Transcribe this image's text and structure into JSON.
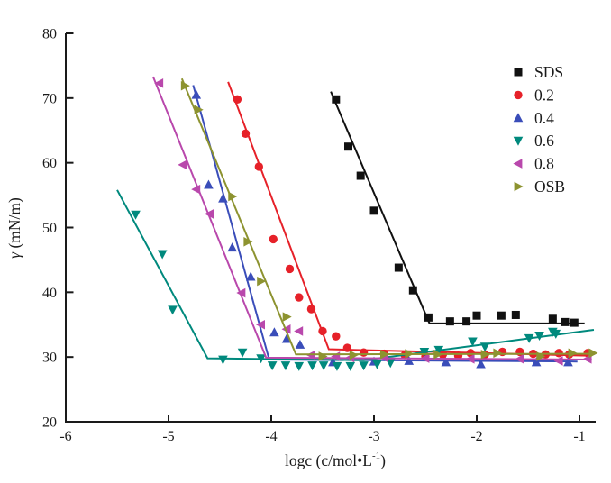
{
  "figure": {
    "background": "#ffffff",
    "axis_color": "#1a1a1a",
    "text_color": "#1a1a1a"
  },
  "chart_data": {
    "type": "scatter",
    "title": "",
    "xlabel_parts": {
      "main": "logc (c/mol•L",
      "sup": "-1",
      "close": ")"
    },
    "ylabel_parts": {
      "symbol": "γ",
      "rest": " (mN/m)"
    },
    "xlim": [
      -6,
      -0.75
    ],
    "ylim": [
      20,
      80
    ],
    "x_ticks": [
      -6,
      -5,
      -4,
      -3,
      -2,
      -1
    ],
    "y_ticks": [
      20,
      30,
      40,
      50,
      60,
      70,
      80
    ],
    "grid": false,
    "legend_position": "top-right",
    "series": [
      {
        "name": "SDS",
        "color": "#111111",
        "marker": "square",
        "line": [
          [
            -3.42,
            71.0
          ],
          [
            -2.46,
            35.2
          ],
          [
            -0.95,
            35.2
          ]
        ],
        "scatter": [
          [
            -3.37,
            69.8
          ],
          [
            -3.25,
            62.5
          ],
          [
            -3.13,
            58.0
          ],
          [
            -3.0,
            52.6
          ],
          [
            -2.76,
            43.8
          ],
          [
            -2.62,
            40.3
          ],
          [
            -2.47,
            36.1
          ],
          [
            -2.26,
            35.5
          ],
          [
            -2.1,
            35.5
          ],
          [
            -2.0,
            36.4
          ],
          [
            -1.76,
            36.4
          ],
          [
            -1.62,
            36.5
          ],
          [
            -1.26,
            35.9
          ],
          [
            -1.14,
            35.4
          ],
          [
            -1.05,
            35.3
          ]
        ]
      },
      {
        "name": "0.2",
        "color": "#e62129",
        "marker": "circle",
        "line": [
          [
            -4.42,
            72.5
          ],
          [
            -3.44,
            31.2
          ],
          [
            -0.88,
            30.2
          ]
        ],
        "scatter": [
          [
            -4.33,
            69.8
          ],
          [
            -4.25,
            64.5
          ],
          [
            -4.12,
            59.4
          ],
          [
            -3.98,
            48.2
          ],
          [
            -3.82,
            43.6
          ],
          [
            -3.73,
            39.2
          ],
          [
            -3.61,
            37.4
          ],
          [
            -3.5,
            34.0
          ],
          [
            -3.37,
            33.2
          ],
          [
            -3.26,
            31.4
          ],
          [
            -3.1,
            30.7
          ],
          [
            -2.9,
            30.5
          ],
          [
            -2.7,
            30.3
          ],
          [
            -2.5,
            30.1
          ],
          [
            -2.33,
            30.4
          ],
          [
            -2.18,
            30.2
          ],
          [
            -2.06,
            30.6
          ],
          [
            -1.92,
            30.4
          ],
          [
            -1.75,
            30.8
          ],
          [
            -1.58,
            30.8
          ],
          [
            -1.45,
            30.5
          ],
          [
            -1.33,
            30.4
          ],
          [
            -1.2,
            30.6
          ],
          [
            -1.1,
            30.4
          ],
          [
            -0.92,
            30.6
          ]
        ]
      },
      {
        "name": "0.4",
        "color": "#3a4db9",
        "marker": "triangle-up",
        "line": [
          [
            -4.76,
            72.0
          ],
          [
            -4.02,
            29.6
          ],
          [
            -1.02,
            29.3
          ]
        ],
        "scatter": [
          [
            -4.73,
            70.5
          ],
          [
            -4.61,
            56.6
          ],
          [
            -4.47,
            54.5
          ],
          [
            -4.38,
            46.9
          ],
          [
            -4.2,
            42.4
          ],
          [
            -3.97,
            33.8
          ],
          [
            -3.85,
            32.8
          ],
          [
            -3.72,
            31.9
          ],
          [
            -3.4,
            29.2
          ],
          [
            -3.0,
            29.3
          ],
          [
            -2.66,
            29.4
          ],
          [
            -2.3,
            29.2
          ],
          [
            -1.96,
            28.9
          ],
          [
            -1.42,
            29.2
          ],
          [
            -1.11,
            29.2
          ]
        ]
      },
      {
        "name": "0.6",
        "color": "#00897d",
        "marker": "triangle-down",
        "line": [
          [
            -5.5,
            55.8
          ],
          [
            -4.62,
            29.8
          ],
          [
            -3.1,
            29.5
          ],
          [
            -0.86,
            34.2
          ]
        ],
        "scatter": [
          [
            -5.32,
            52.0
          ],
          [
            -5.06,
            45.9
          ],
          [
            -4.96,
            37.3
          ],
          [
            -4.47,
            29.6
          ],
          [
            -4.28,
            30.7
          ],
          [
            -4.1,
            29.8
          ],
          [
            -3.99,
            28.7
          ],
          [
            -3.86,
            28.7
          ],
          [
            -3.73,
            28.6
          ],
          [
            -3.6,
            28.7
          ],
          [
            -3.49,
            28.7
          ],
          [
            -3.36,
            28.6
          ],
          [
            -3.23,
            28.6
          ],
          [
            -3.1,
            28.7
          ],
          [
            -2.97,
            28.9
          ],
          [
            -2.84,
            29.1
          ],
          [
            -2.51,
            30.8
          ],
          [
            -2.37,
            31.1
          ],
          [
            -2.04,
            32.4
          ],
          [
            -1.92,
            31.6
          ],
          [
            -1.49,
            32.9
          ],
          [
            -1.39,
            33.3
          ],
          [
            -1.26,
            33.9
          ],
          [
            -1.23,
            33.6
          ]
        ]
      },
      {
        "name": "0.8",
        "color": "#b948ac",
        "marker": "triangle-left",
        "line": [
          [
            -5.15,
            73.3
          ],
          [
            -4.05,
            29.9
          ],
          [
            -0.88,
            29.6
          ]
        ],
        "scatter": [
          [
            -5.09,
            72.3
          ],
          [
            -4.86,
            59.7
          ],
          [
            -4.73,
            55.9
          ],
          [
            -4.6,
            52.1
          ],
          [
            -4.29,
            39.9
          ],
          [
            -4.1,
            35.0
          ],
          [
            -3.85,
            34.3
          ],
          [
            -3.73,
            34.0
          ],
          [
            -3.61,
            30.3
          ],
          [
            -3.37,
            30.1
          ],
          [
            -3.23,
            29.9
          ],
          [
            -2.9,
            29.9
          ],
          [
            -2.5,
            29.8
          ],
          [
            -2.06,
            29.7
          ],
          [
            -1.58,
            29.7
          ],
          [
            -1.2,
            29.4
          ],
          [
            -0.92,
            29.7
          ]
        ]
      },
      {
        "name": "OSB",
        "color": "#8d9330",
        "marker": "triangle-right",
        "line": [
          [
            -4.87,
            73.0
          ],
          [
            -3.76,
            30.4
          ],
          [
            -0.85,
            30.5
          ]
        ],
        "scatter": [
          [
            -4.84,
            71.9
          ],
          [
            -4.71,
            68.2
          ],
          [
            -4.38,
            54.8
          ],
          [
            -4.23,
            47.8
          ],
          [
            -4.1,
            41.7
          ],
          [
            -3.85,
            36.2
          ],
          [
            -3.5,
            30.1
          ],
          [
            -3.2,
            30.3
          ],
          [
            -2.9,
            30.4
          ],
          [
            -2.66,
            30.5
          ],
          [
            -2.38,
            30.4
          ],
          [
            -1.92,
            30.4
          ],
          [
            -1.8,
            30.6
          ],
          [
            -1.38,
            30.1
          ],
          [
            -1.07,
            30.6
          ],
          [
            -0.87,
            30.6
          ]
        ]
      }
    ]
  }
}
